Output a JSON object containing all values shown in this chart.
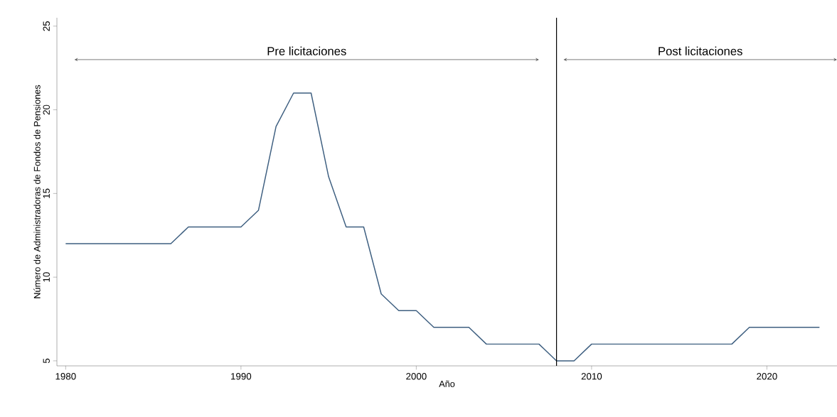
{
  "chart_data": {
    "type": "line",
    "xlabel": "Año",
    "ylabel": "Número de Administradoras de Fondos de Pensiones",
    "x": [
      1980,
      1981,
      1982,
      1983,
      1984,
      1985,
      1986,
      1987,
      1988,
      1989,
      1990,
      1991,
      1992,
      1993,
      1994,
      1995,
      1996,
      1997,
      1998,
      1999,
      2000,
      2001,
      2002,
      2003,
      2004,
      2005,
      2006,
      2007,
      2008,
      2009,
      2010,
      2011,
      2012,
      2013,
      2014,
      2015,
      2016,
      2017,
      2018,
      2019,
      2020,
      2021,
      2022,
      2023
    ],
    "series": [
      {
        "color": "#3e5f80",
        "values": [
          12,
          12,
          12,
          12,
          12,
          12,
          12,
          13,
          13,
          13,
          13,
          14,
          19,
          21,
          21,
          16,
          13,
          13,
          9,
          8,
          8,
          7,
          7,
          7,
          6,
          6,
          6,
          6,
          5,
          5,
          6,
          6,
          6,
          6,
          6,
          6,
          6,
          6,
          6,
          7,
          7,
          7,
          7,
          7
        ]
      }
    ],
    "xlim": [
      1979.5,
      2024
    ],
    "ylim": [
      4.7,
      25.5
    ],
    "xticks": [
      1980,
      1990,
      2000,
      2010,
      2020
    ],
    "yticks": [
      5,
      10,
      15,
      20,
      25
    ],
    "grid": false,
    "marker": "none",
    "line_style": "solid",
    "ref_lines": [
      {
        "axis": "x",
        "value": 2008,
        "color": "#000000"
      }
    ],
    "annotations": [
      "Pre licitaciones",
      "Post licitaciones"
    ]
  }
}
